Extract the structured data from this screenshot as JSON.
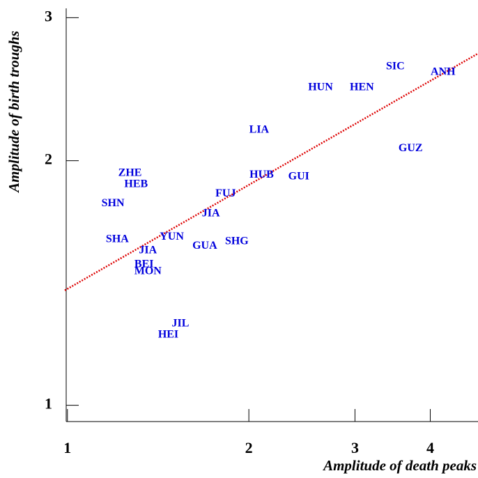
{
  "chart_data": {
    "type": "scatter",
    "xlabel": "Amplitude of death peaks",
    "ylabel": "Amplitude of birth troughs",
    "xscale": "log",
    "yscale": "log",
    "xlim": [
      0.99,
      4.8
    ],
    "ylim": [
      0.955,
      3.08
    ],
    "xticks": [
      1,
      2,
      3,
      4
    ],
    "yticks": [
      1,
      2,
      3
    ],
    "series": [
      {
        "color": "#0000dd",
        "labels": [
          "SIC",
          "ANH",
          "HUN",
          "HEN",
          "LIA",
          "GUZ",
          "ZHE",
          "HUB",
          "GUI",
          "HEB",
          "FUJ",
          "SHN",
          "JIA",
          "SHA",
          "YUN",
          "SHG",
          "GUA",
          "JIA",
          "BEI",
          "MON",
          "JIL",
          "HEI"
        ],
        "x": [
          3.5,
          4.2,
          2.63,
          3.08,
          2.08,
          3.71,
          1.27,
          2.1,
          2.42,
          1.3,
          1.83,
          1.19,
          1.73,
          1.21,
          1.49,
          1.91,
          1.69,
          1.36,
          1.34,
          1.36,
          1.54,
          1.47
        ],
        "values": [
          2.61,
          2.57,
          2.46,
          2.46,
          2.18,
          2.07,
          1.93,
          1.92,
          1.91,
          1.87,
          1.82,
          1.77,
          1.72,
          1.6,
          1.61,
          1.59,
          1.57,
          1.55,
          1.49,
          1.46,
          1.26,
          1.22
        ]
      }
    ],
    "fit": {
      "color": "#dd0000",
      "x": [
        0.99,
        4.8
      ],
      "y": [
        1.385,
        2.71
      ]
    }
  }
}
